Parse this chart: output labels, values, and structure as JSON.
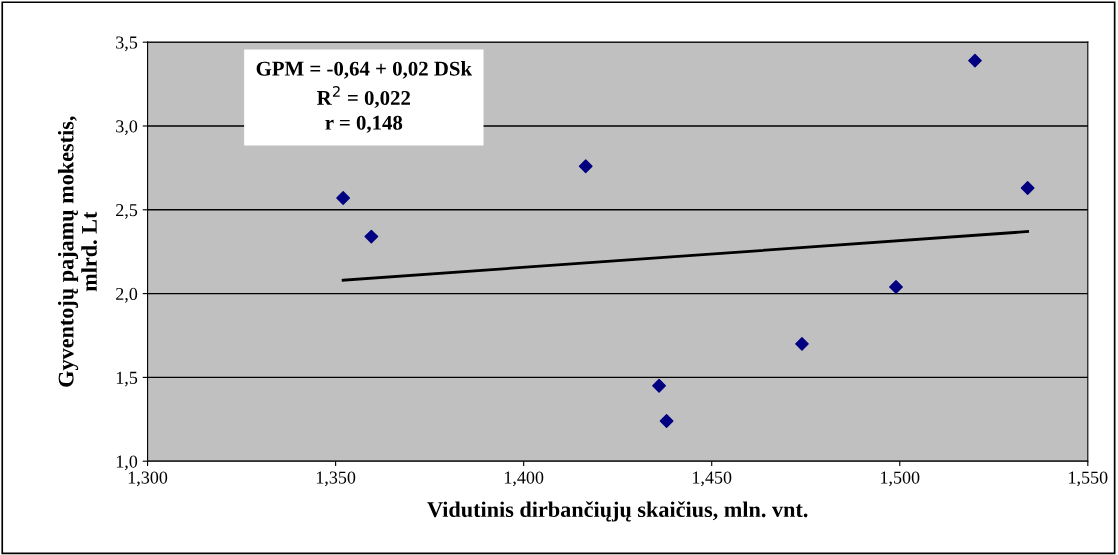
{
  "chart_data": {
    "type": "scatter",
    "xlabel": "Vidutinis dirbančiųjų skaičius, mln. vnt.",
    "ylabel": "Gyventojų pajamų mokestis,\nmlrd. Lt",
    "annotations": [
      "GPM = -0,64 + 0,02 DSk",
      "R$^{2}$ = 0,022",
      "r = 0,148"
    ],
    "series": [
      {
        "color": "#000080",
        "marker": "diamond",
        "x": [
          1.352,
          1.3595,
          1.4165,
          1.436,
          1.438,
          1.474,
          1.499,
          1.52,
          1.534
        ],
        "values": [
          2.57,
          2.34,
          2.76,
          1.45,
          1.24,
          1.7,
          2.04,
          3.39,
          2.63
        ]
      },
      {
        "type": "line",
        "color": "#000000",
        "x": [
          1.352,
          1.534
        ],
        "values": [
          2.08,
          2.37
        ]
      }
    ],
    "xlim": [
      1.3,
      1.55
    ],
    "xticks": [
      {
        "value": 1.3,
        "label": "1,300"
      },
      {
        "value": 1.35,
        "label": "1,350"
      },
      {
        "value": 1.4,
        "label": "1,400"
      },
      {
        "value": 1.45,
        "label": "1,450"
      },
      {
        "value": 1.5,
        "label": "1,500"
      },
      {
        "value": 1.55,
        "label": "1,550"
      }
    ],
    "ylim": [
      1.0,
      3.5
    ],
    "yticks": [
      {
        "value": 1.0,
        "label": "1,0"
      },
      {
        "value": 1.5,
        "label": "1,5"
      },
      {
        "value": 2.0,
        "label": "2,0"
      },
      {
        "value": 2.5,
        "label": "2,5"
      },
      {
        "value": 3.0,
        "label": "3,0"
      },
      {
        "value": 3.5,
        "label": "3,5"
      }
    ],
    "grid": "y",
    "legend": false
  }
}
